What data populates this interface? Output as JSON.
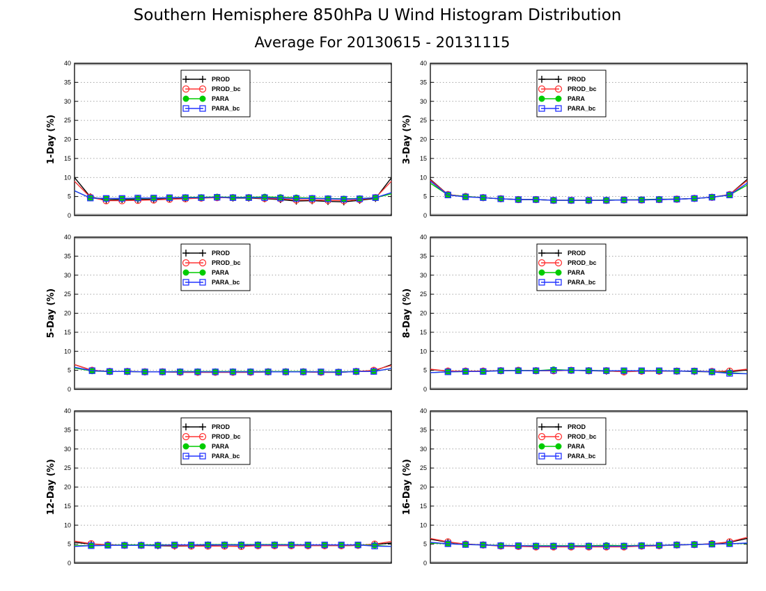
{
  "title": "Southern Hemisphere 850hPa U Wind Histogram Distribution",
  "subtitle": "Average For 20130615 - 20131115",
  "colors": {
    "PROD": "#000000",
    "PROD_bc": "#ff3333",
    "PARA": "#00cc00",
    "PARA_bc": "#2233ff"
  },
  "chart_data": [
    {
      "type": "line",
      "ylabel": "1-Day (%)",
      "ylim": [
        0,
        40
      ],
      "yticks": [
        "0",
        "5",
        "10",
        "15",
        "20",
        "25",
        "30",
        "35",
        "40"
      ],
      "grid": true,
      "legend_position": "top-center",
      "series": [
        {
          "name": "PROD",
          "values": [
            10.0,
            4.9,
            4.1,
            4.2,
            4.2,
            4.3,
            4.4,
            4.5,
            4.6,
            4.8,
            4.6,
            4.6,
            4.4,
            4.2,
            3.8,
            3.9,
            3.7,
            3.6,
            4.0,
            4.5,
            9.9
          ]
        },
        {
          "name": "PROD_bc",
          "values": [
            9.0,
            4.8,
            3.9,
            3.9,
            4.0,
            4.1,
            4.3,
            4.4,
            4.6,
            4.7,
            4.7,
            4.7,
            4.5,
            4.4,
            4.1,
            4.1,
            4.0,
            3.9,
            4.2,
            4.7,
            9.0
          ]
        },
        {
          "name": "PARA",
          "values": [
            6.5,
            4.6,
            4.5,
            4.5,
            4.5,
            4.6,
            4.7,
            4.8,
            4.8,
            4.9,
            4.8,
            4.8,
            4.9,
            4.8,
            4.7,
            4.6,
            4.5,
            4.4,
            4.5,
            4.7,
            5.7
          ]
        },
        {
          "name": "PARA_bc",
          "values": [
            6.5,
            4.6,
            4.5,
            4.5,
            4.6,
            4.6,
            4.7,
            4.7,
            4.7,
            4.8,
            4.7,
            4.7,
            4.7,
            4.6,
            4.5,
            4.5,
            4.4,
            4.3,
            4.4,
            4.7,
            6.0
          ]
        }
      ]
    },
    {
      "type": "line",
      "ylabel": "3-Day (%)",
      "ylim": [
        0,
        40
      ],
      "yticks": [
        "0",
        "5",
        "10",
        "15",
        "20",
        "25",
        "30",
        "35",
        "40"
      ],
      "grid": true,
      "legend_position": "top-center",
      "series": [
        {
          "name": "PROD",
          "values": [
            9.5,
            5.5,
            5.0,
            4.7,
            4.4,
            4.2,
            4.2,
            4.0,
            4.0,
            4.0,
            4.0,
            4.1,
            4.1,
            4.2,
            4.3,
            4.5,
            4.8,
            5.5,
            9.5
          ]
        },
        {
          "name": "PROD_bc",
          "values": [
            9.3,
            5.5,
            5.0,
            4.7,
            4.4,
            4.2,
            4.2,
            4.0,
            4.0,
            4.0,
            4.0,
            4.1,
            4.1,
            4.2,
            4.3,
            4.5,
            4.8,
            5.5,
            9.2
          ]
        },
        {
          "name": "PARA",
          "values": [
            8.5,
            5.4,
            5.0,
            4.7,
            4.4,
            4.2,
            4.2,
            4.0,
            4.0,
            4.0,
            4.1,
            4.1,
            4.2,
            4.3,
            4.3,
            4.5,
            4.8,
            5.4,
            8.0
          ]
        },
        {
          "name": "PARA_bc",
          "values": [
            9.0,
            5.4,
            4.9,
            4.7,
            4.4,
            4.2,
            4.2,
            4.0,
            4.0,
            4.0,
            4.0,
            4.1,
            4.1,
            4.2,
            4.3,
            4.5,
            4.8,
            5.4,
            8.5
          ]
        }
      ]
    },
    {
      "type": "line",
      "ylabel": "5-Day (%)",
      "ylim": [
        0,
        40
      ],
      "yticks": [
        "0",
        "5",
        "10",
        "15",
        "20",
        "25",
        "30",
        "35",
        "40"
      ],
      "grid": true,
      "legend_position": "top-center",
      "series": [
        {
          "name": "PROD",
          "values": [
            6.5,
            5.0,
            4.7,
            4.7,
            4.6,
            4.6,
            4.5,
            4.5,
            4.5,
            4.5,
            4.5,
            4.6,
            4.6,
            4.6,
            4.5,
            4.5,
            4.7,
            4.8,
            6.5
          ]
        },
        {
          "name": "PROD_bc",
          "values": [
            6.5,
            5.0,
            4.7,
            4.7,
            4.6,
            4.6,
            4.5,
            4.5,
            4.5,
            4.5,
            4.5,
            4.6,
            4.6,
            4.6,
            4.5,
            4.5,
            4.7,
            5.0,
            6.3
          ]
        },
        {
          "name": "PARA",
          "values": [
            5.6,
            4.8,
            4.7,
            4.7,
            4.6,
            4.6,
            4.7,
            4.7,
            4.7,
            4.7,
            4.7,
            4.7,
            4.7,
            4.7,
            4.6,
            4.6,
            4.7,
            4.7,
            5.5
          ]
        },
        {
          "name": "PARA_bc",
          "values": [
            5.8,
            4.9,
            4.7,
            4.7,
            4.6,
            4.6,
            4.6,
            4.6,
            4.6,
            4.6,
            4.6,
            4.6,
            4.6,
            4.6,
            4.6,
            4.5,
            4.7,
            4.7,
            5.5
          ]
        }
      ]
    },
    {
      "type": "line",
      "ylabel": "8-Day (%)",
      "ylim": [
        0,
        40
      ],
      "yticks": [
        "0",
        "5",
        "10",
        "15",
        "20",
        "25",
        "30",
        "35",
        "40"
      ],
      "grid": true,
      "legend_position": "top-center",
      "series": [
        {
          "name": "PROD",
          "values": [
            5.2,
            4.8,
            4.8,
            4.8,
            4.9,
            5.0,
            4.9,
            4.9,
            5.0,
            4.9,
            4.8,
            4.7,
            4.8,
            4.8,
            4.8,
            4.7,
            4.6,
            4.6,
            5.1
          ]
        },
        {
          "name": "PROD_bc",
          "values": [
            5.3,
            4.8,
            4.8,
            4.8,
            4.9,
            5.0,
            4.9,
            4.9,
            5.0,
            4.9,
            4.9,
            4.6,
            4.8,
            4.8,
            4.8,
            4.8,
            4.7,
            4.8,
            5.3
          ]
        },
        {
          "name": "PARA",
          "values": [
            4.4,
            4.6,
            4.7,
            4.7,
            4.9,
            5.0,
            4.9,
            5.2,
            5.0,
            5.0,
            4.9,
            4.9,
            4.9,
            4.9,
            4.8,
            4.8,
            4.6,
            4.4,
            4.1
          ]
        },
        {
          "name": "PARA_bc",
          "values": [
            4.4,
            4.6,
            4.7,
            4.7,
            4.9,
            4.9,
            4.9,
            5.0,
            5.0,
            4.9,
            4.9,
            4.9,
            4.9,
            4.9,
            4.8,
            4.8,
            4.6,
            4.2,
            4.1
          ]
        }
      ]
    },
    {
      "type": "line",
      "ylabel": "12-Day (%)",
      "ylim": [
        0,
        40
      ],
      "yticks": [
        "0",
        "5",
        "10",
        "15",
        "20",
        "25",
        "30",
        "35",
        "40"
      ],
      "grid": true,
      "legend_position": "top-center",
      "series": [
        {
          "name": "PROD",
          "values": [
            5.5,
            5.0,
            4.8,
            4.7,
            4.7,
            4.6,
            4.5,
            4.5,
            4.6,
            4.5,
            4.5,
            4.7,
            4.6,
            4.6,
            4.6,
            4.6,
            4.6,
            4.7,
            4.9,
            5.3
          ]
        },
        {
          "name": "PROD_bc",
          "values": [
            5.8,
            5.1,
            4.8,
            4.7,
            4.7,
            4.7,
            4.6,
            4.5,
            4.5,
            4.5,
            4.4,
            4.6,
            4.6,
            4.6,
            4.6,
            4.6,
            4.6,
            4.7,
            5.0,
            5.7
          ]
        },
        {
          "name": "PARA",
          "values": [
            4.6,
            4.6,
            4.7,
            4.8,
            4.8,
            4.8,
            4.8,
            4.8,
            4.9,
            4.9,
            4.9,
            4.9,
            4.9,
            4.9,
            4.8,
            4.8,
            4.8,
            4.8,
            4.7,
            4.4
          ]
        },
        {
          "name": "PARA_bc",
          "values": [
            4.4,
            4.6,
            4.7,
            4.7,
            4.7,
            4.7,
            4.8,
            4.8,
            4.8,
            4.8,
            4.8,
            4.8,
            4.8,
            4.8,
            4.8,
            4.8,
            4.8,
            4.8,
            4.5,
            4.4
          ]
        }
      ]
    },
    {
      "type": "line",
      "ylabel": "16-Day (%)",
      "ylim": [
        0,
        40
      ],
      "yticks": [
        "0",
        "5",
        "10",
        "15",
        "20",
        "25",
        "30",
        "35",
        "40"
      ],
      "grid": true,
      "legend_position": "top-center",
      "series": [
        {
          "name": "PROD",
          "values": [
            6.3,
            5.5,
            5.0,
            4.8,
            4.6,
            4.5,
            4.4,
            4.4,
            4.4,
            4.4,
            4.5,
            4.4,
            4.5,
            4.6,
            4.8,
            4.9,
            5.1,
            5.5,
            6.5
          ]
        },
        {
          "name": "PROD_bc",
          "values": [
            6.5,
            5.6,
            5.0,
            4.8,
            4.5,
            4.4,
            4.3,
            4.3,
            4.3,
            4.3,
            4.3,
            4.3,
            4.5,
            4.6,
            4.8,
            4.9,
            5.1,
            5.6,
            6.8
          ]
        },
        {
          "name": "PARA",
          "values": [
            5.3,
            5.1,
            4.9,
            4.8,
            4.7,
            4.6,
            4.6,
            4.6,
            4.6,
            4.6,
            4.7,
            4.6,
            4.7,
            4.7,
            4.8,
            4.9,
            5.0,
            5.1,
            5.2
          ]
        },
        {
          "name": "PARA_bc",
          "values": [
            5.5,
            5.1,
            4.9,
            4.8,
            4.6,
            4.6,
            4.5,
            4.5,
            4.5,
            4.5,
            4.5,
            4.5,
            4.6,
            4.7,
            4.8,
            4.9,
            5.0,
            5.1,
            5.3
          ]
        }
      ]
    }
  ]
}
